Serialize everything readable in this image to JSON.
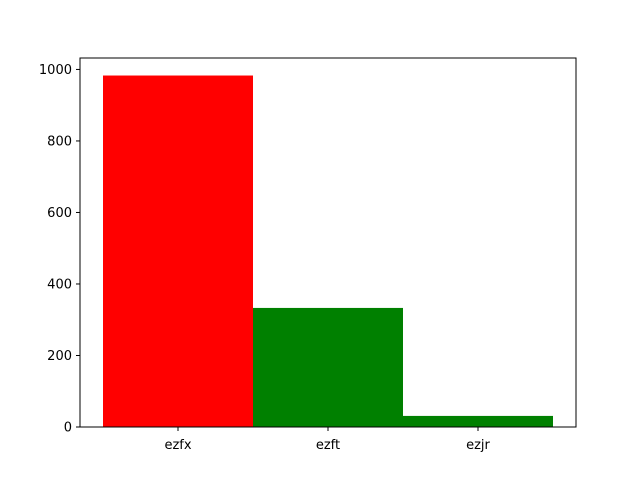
{
  "chart_data": {
    "type": "bar",
    "title": "",
    "xlabel": "",
    "ylabel": "",
    "categories": [
      "ezfx",
      "ezft",
      "ezjr"
    ],
    "values": [
      983,
      333,
      31
    ],
    "colors": [
      "#ff0000",
      "#008000",
      "#008000"
    ],
    "ylim": [
      0,
      1032
    ],
    "yticks": [
      0,
      200,
      400,
      600,
      800,
      1000
    ],
    "ytick_labels": [
      "0",
      "200",
      "400",
      "600",
      "800",
      "1000"
    ],
    "grid": false,
    "legend": "none"
  }
}
